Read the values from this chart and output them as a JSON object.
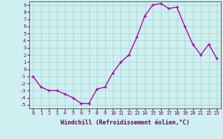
{
  "x": [
    0,
    1,
    2,
    3,
    4,
    5,
    6,
    7,
    8,
    9,
    10,
    11,
    12,
    13,
    14,
    15,
    16,
    17,
    18,
    19,
    20,
    21,
    22,
    23
  ],
  "y": [
    -1.0,
    -2.5,
    -3.0,
    -3.0,
    -3.5,
    -4.0,
    -4.8,
    -4.8,
    -2.8,
    -2.5,
    -0.5,
    1.0,
    2.0,
    4.5,
    7.5,
    9.0,
    9.2,
    8.5,
    8.7,
    6.0,
    3.5,
    2.0,
    3.5,
    1.5
  ],
  "line_color": "#aa00aa",
  "marker": "+",
  "markersize": 3,
  "linewidth": 1.0,
  "bg_color": "#cff0f0",
  "grid_color": "#aacccc",
  "xlabel": "Windchill (Refroidissement éolien,°C)",
  "xlim": [
    -0.5,
    23.5
  ],
  "ylim": [
    -5.5,
    9.5
  ],
  "yticks": [
    -5,
    -4,
    -3,
    -2,
    -1,
    0,
    1,
    2,
    3,
    4,
    5,
    6,
    7,
    8,
    9
  ],
  "xticks": [
    0,
    1,
    2,
    3,
    4,
    5,
    6,
    7,
    8,
    9,
    10,
    11,
    12,
    13,
    14,
    15,
    16,
    17,
    18,
    19,
    20,
    21,
    22,
    23
  ],
  "xlabel_fontsize": 6.0,
  "tick_fontsize": 5.0,
  "axis_color": "#660066",
  "spine_color": "#666666"
}
